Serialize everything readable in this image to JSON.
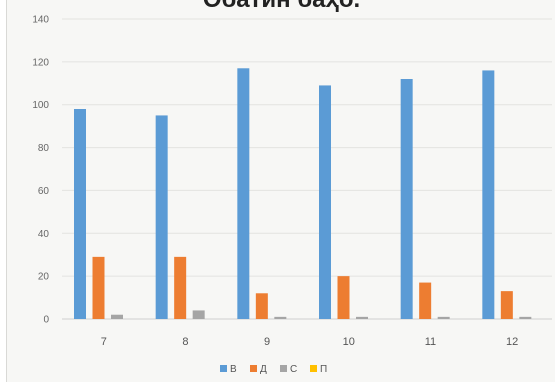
{
  "chart_data": {
    "type": "bar",
    "title": "Обатин баҳо.",
    "xlabel": "",
    "ylabel": "",
    "categories": [
      "7",
      "8",
      "9",
      "10",
      "11",
      "12"
    ],
    "ylim": [
      0,
      140
    ],
    "yticks": [
      0,
      20,
      40,
      60,
      80,
      100,
      120,
      140
    ],
    "grid": true,
    "legend_position": "bottom",
    "series": [
      {
        "name": "В",
        "color": "#5b9bd5",
        "values": [
          98,
          95,
          117,
          109,
          112,
          116
        ]
      },
      {
        "name": "Д",
        "color": "#ed7d31",
        "values": [
          29,
          29,
          12,
          20,
          17,
          13
        ]
      },
      {
        "name": "С",
        "color": "#a5a5a5",
        "values": [
          2,
          4,
          1,
          1,
          1,
          1
        ]
      },
      {
        "name": "П",
        "color": "#ffc000",
        "values": [
          0,
          0,
          0,
          0,
          0,
          0
        ]
      }
    ]
  }
}
